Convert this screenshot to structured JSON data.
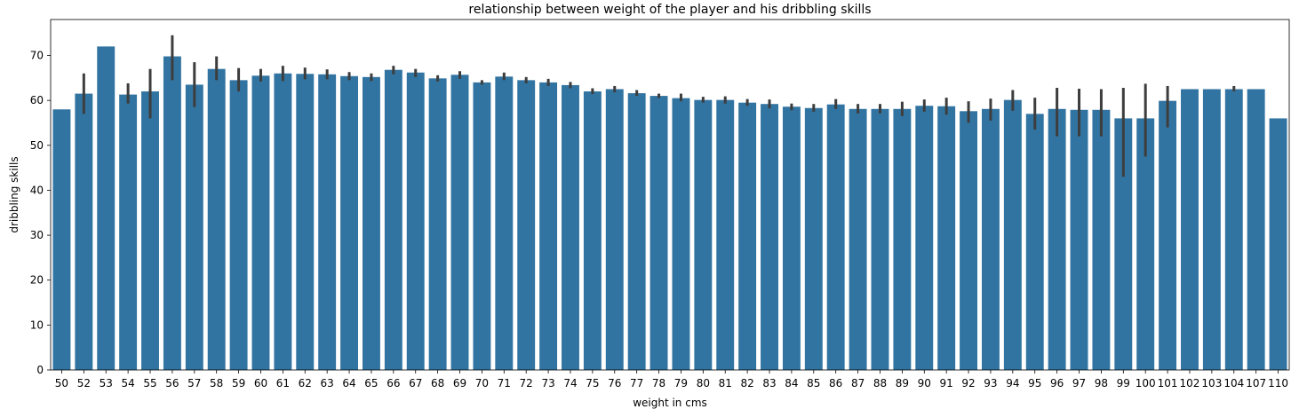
{
  "chart_data": {
    "type": "bar",
    "title": "relationship between weight of the player and his dribbling skills",
    "xlabel": "weight in cms",
    "ylabel": "dribbling skills",
    "ylim": [
      0,
      78
    ],
    "yticks": [
      0,
      10,
      20,
      30,
      40,
      50,
      60,
      70
    ],
    "grid": false,
    "bar_color": "#3274a1",
    "errorbar_color": "#3d3d3d",
    "categories": [
      "50",
      "52",
      "53",
      "54",
      "55",
      "56",
      "57",
      "58",
      "59",
      "60",
      "61",
      "62",
      "63",
      "64",
      "65",
      "66",
      "67",
      "68",
      "69",
      "70",
      "71",
      "72",
      "73",
      "74",
      "75",
      "76",
      "77",
      "78",
      "79",
      "80",
      "81",
      "82",
      "83",
      "84",
      "85",
      "86",
      "87",
      "88",
      "89",
      "90",
      "91",
      "92",
      "93",
      "94",
      "95",
      "96",
      "97",
      "98",
      "99",
      "100",
      "101",
      "102",
      "103",
      "104",
      "107",
      "110"
    ],
    "values": [
      58,
      61.5,
      72,
      61.3,
      62,
      69.8,
      63.5,
      67,
      64.5,
      65.5,
      66,
      65.9,
      65.8,
      65.4,
      65.2,
      66.8,
      66.2,
      64.9,
      65.7,
      64,
      65.3,
      64.5,
      64,
      63.4,
      62,
      62.5,
      61.6,
      61,
      60.5,
      60.1,
      60.1,
      59.5,
      59.2,
      58.6,
      58.3,
      59.1,
      58.1,
      58.1,
      58.1,
      58.8,
      58.7,
      57.6,
      58.1,
      60.1,
      57,
      58.1,
      57.9,
      57.9,
      56,
      56,
      59.9,
      62.5,
      62.5,
      62.5,
      62.5,
      56
    ],
    "error_low": [
      null,
      57,
      null,
      59.3,
      56,
      64.5,
      58.5,
      64.5,
      62,
      64.2,
      64.3,
      64.7,
      64.7,
      64.5,
      64.3,
      65.8,
      65.2,
      64.2,
      64.8,
      63.5,
      64.5,
      63.8,
      63.2,
      62.7,
      61.4,
      61.8,
      61,
      60.5,
      59.8,
      59.5,
      59.3,
      58.8,
      58.2,
      57.8,
      57.5,
      58.1,
      57.1,
      57.1,
      56.5,
      57.5,
      56.8,
      55,
      55.5,
      57.7,
      53.5,
      52,
      52,
      52,
      43,
      47.5,
      54,
      null,
      null,
      62,
      null,
      null
    ],
    "error_high": [
      null,
      66,
      null,
      63.8,
      67,
      74.5,
      68.5,
      69.8,
      67.2,
      67,
      67.7,
      67.3,
      66.9,
      66.3,
      66,
      67.7,
      67,
      65.6,
      66.5,
      64.5,
      66.2,
      65.2,
      64.8,
      64.1,
      62.7,
      63.2,
      62.3,
      61.5,
      61.5,
      60.8,
      60.9,
      60.3,
      60.2,
      59.3,
      59.2,
      60.3,
      59.2,
      59.2,
      59.7,
      60.2,
      60.6,
      59.8,
      60.4,
      62.3,
      60.6,
      62.8,
      62.6,
      62.5,
      62.8,
      63.7,
      63.2,
      null,
      null,
      63.2,
      null,
      null
    ]
  }
}
